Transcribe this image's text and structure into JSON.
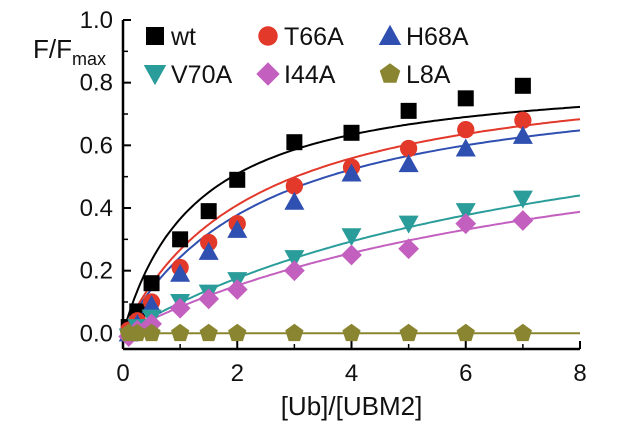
{
  "chart_data": {
    "type": "scatter",
    "xlabel": "[Ub]/[UBM2]",
    "ylabel": {
      "main": "F/F",
      "sub": "max"
    },
    "xlim": [
      0,
      8
    ],
    "ylim": [
      -0.05,
      1.0
    ],
    "xticks": [
      0,
      2,
      4,
      6,
      8
    ],
    "yticks": [
      0.0,
      0.2,
      0.4,
      0.6,
      0.8,
      1.0
    ],
    "xtick_labels": [
      "0",
      "2",
      "4",
      "6",
      "8"
    ],
    "ytick_labels": [
      "0.0",
      "0.2",
      "0.4",
      "0.6",
      "0.8",
      "1.0"
    ],
    "grid": false,
    "legend_position": "top",
    "series": [
      {
        "name": "wt",
        "color": "#000000",
        "marker": "square",
        "x": [
          0.1,
          0.25,
          0.5,
          1.0,
          1.5,
          2.0,
          3.0,
          4.0,
          5.0,
          6.0,
          7.0
        ],
        "y": [
          0.02,
          0.07,
          0.16,
          0.3,
          0.39,
          0.49,
          0.61,
          0.64,
          0.71,
          0.75,
          0.79
        ],
        "fit_params": [
          0.84,
          1.3
        ]
      },
      {
        "name": "T66A",
        "color": "#e2392b",
        "marker": "circle",
        "x": [
          0.1,
          0.25,
          0.5,
          1.0,
          1.5,
          2.0,
          3.0,
          4.0,
          5.0,
          6.0,
          7.0
        ],
        "y": [
          0.01,
          0.04,
          0.1,
          0.21,
          0.29,
          0.35,
          0.47,
          0.53,
          0.59,
          0.65,
          0.68
        ],
        "fit_params": [
          0.88,
          2.3
        ]
      },
      {
        "name": "H68A",
        "color": "#2f4fb1",
        "marker": "triangle-up",
        "x": [
          0.1,
          0.25,
          0.5,
          1.0,
          1.5,
          2.0,
          3.0,
          4.0,
          5.0,
          6.0,
          7.0
        ],
        "y": [
          0.0,
          0.03,
          0.09,
          0.19,
          0.26,
          0.33,
          0.42,
          0.51,
          0.54,
          0.59,
          0.63
        ],
        "fit_params": [
          0.85,
          2.5
        ]
      },
      {
        "name": "V70A",
        "color": "#2a9d9a",
        "marker": "triangle-down",
        "x": [
          0.1,
          0.25,
          0.5,
          1.0,
          1.5,
          2.0,
          3.0,
          4.0,
          5.0,
          6.0,
          7.0
        ],
        "y": [
          -0.01,
          0.02,
          0.05,
          0.1,
          0.13,
          0.17,
          0.24,
          0.31,
          0.35,
          0.39,
          0.43
        ],
        "fit_params": [
          0.88,
          8.0
        ]
      },
      {
        "name": "I44A",
        "color": "#c35fbf",
        "marker": "diamond",
        "x": [
          0.1,
          0.25,
          0.5,
          1.0,
          1.5,
          2.0,
          3.0,
          4.0,
          5.0,
          6.0,
          7.0
        ],
        "y": [
          -0.01,
          0.01,
          0.03,
          0.08,
          0.11,
          0.14,
          0.2,
          0.25,
          0.27,
          0.35,
          0.36
        ],
        "fit_params": [
          0.8,
          8.5
        ]
      },
      {
        "name": "L8A",
        "color": "#8a8530",
        "marker": "pentagon",
        "x": [
          0.1,
          0.25,
          0.5,
          1.0,
          1.5,
          2.0,
          3.0,
          4.0,
          5.0,
          6.0,
          7.0
        ],
        "y": [
          0.0,
          0.0,
          0.0,
          0.0,
          0.0,
          0.0,
          0.0,
          0.0,
          0.0,
          0.0,
          0.0
        ],
        "fit_params": [
          0.0,
          1.0
        ]
      }
    ]
  }
}
